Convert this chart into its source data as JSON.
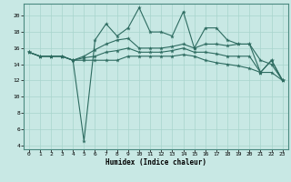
{
  "xlabel": "Humidex (Indice chaleur)",
  "bg_color": "#c8e8e4",
  "line_color": "#2d6b60",
  "grid_color": "#a8d4cc",
  "xlim": [
    -0.5,
    23.5
  ],
  "ylim": [
    3.5,
    21.5
  ],
  "yticks": [
    4,
    6,
    8,
    10,
    12,
    14,
    16,
    18,
    20
  ],
  "xticks": [
    0,
    1,
    2,
    3,
    4,
    5,
    6,
    7,
    8,
    9,
    10,
    11,
    12,
    13,
    14,
    15,
    16,
    17,
    18,
    19,
    20,
    21,
    22,
    23
  ],
  "lines": [
    {
      "x": [
        0,
        1,
        2,
        3,
        4,
        5,
        6,
        7,
        8,
        9,
        10,
        11,
        12,
        13,
        14,
        15,
        16,
        17,
        18,
        19,
        20,
        21,
        22,
        23
      ],
      "y": [
        15.5,
        15.0,
        15.0,
        15.0,
        14.5,
        4.5,
        17.0,
        19.0,
        17.5,
        18.5,
        21.0,
        18.0,
        18.0,
        17.5,
        20.5,
        16.0,
        18.5,
        18.5,
        17.0,
        16.5,
        16.5,
        14.5,
        14.0,
        12.0
      ]
    },
    {
      "x": [
        0,
        1,
        2,
        3,
        4,
        5,
        6,
        7,
        8,
        9,
        10,
        11,
        12,
        13,
        14,
        15,
        16,
        17,
        18,
        19,
        20,
        21,
        22,
        23
      ],
      "y": [
        15.5,
        15.0,
        15.0,
        15.0,
        14.5,
        15.0,
        15.8,
        16.5,
        17.0,
        17.2,
        16.0,
        16.0,
        16.0,
        16.2,
        16.5,
        16.0,
        16.5,
        16.5,
        16.3,
        16.5,
        16.5,
        13.0,
        14.5,
        12.0
      ]
    },
    {
      "x": [
        0,
        1,
        2,
        3,
        4,
        5,
        6,
        7,
        8,
        9,
        10,
        11,
        12,
        13,
        14,
        15,
        16,
        17,
        18,
        19,
        20,
        21,
        22,
        23
      ],
      "y": [
        15.5,
        15.0,
        15.0,
        15.0,
        14.5,
        14.8,
        15.0,
        15.5,
        15.7,
        16.0,
        15.5,
        15.5,
        15.5,
        15.7,
        16.0,
        15.5,
        15.5,
        15.3,
        15.0,
        15.0,
        15.0,
        13.0,
        14.5,
        12.0
      ]
    },
    {
      "x": [
        0,
        1,
        2,
        3,
        4,
        5,
        6,
        7,
        8,
        9,
        10,
        11,
        12,
        13,
        14,
        15,
        16,
        17,
        18,
        19,
        20,
        21,
        22,
        23
      ],
      "y": [
        15.5,
        15.0,
        15.0,
        15.0,
        14.5,
        14.5,
        14.5,
        14.5,
        14.5,
        15.0,
        15.0,
        15.0,
        15.0,
        15.0,
        15.2,
        15.0,
        14.5,
        14.2,
        14.0,
        13.8,
        13.5,
        13.0,
        13.0,
        12.0
      ]
    }
  ]
}
